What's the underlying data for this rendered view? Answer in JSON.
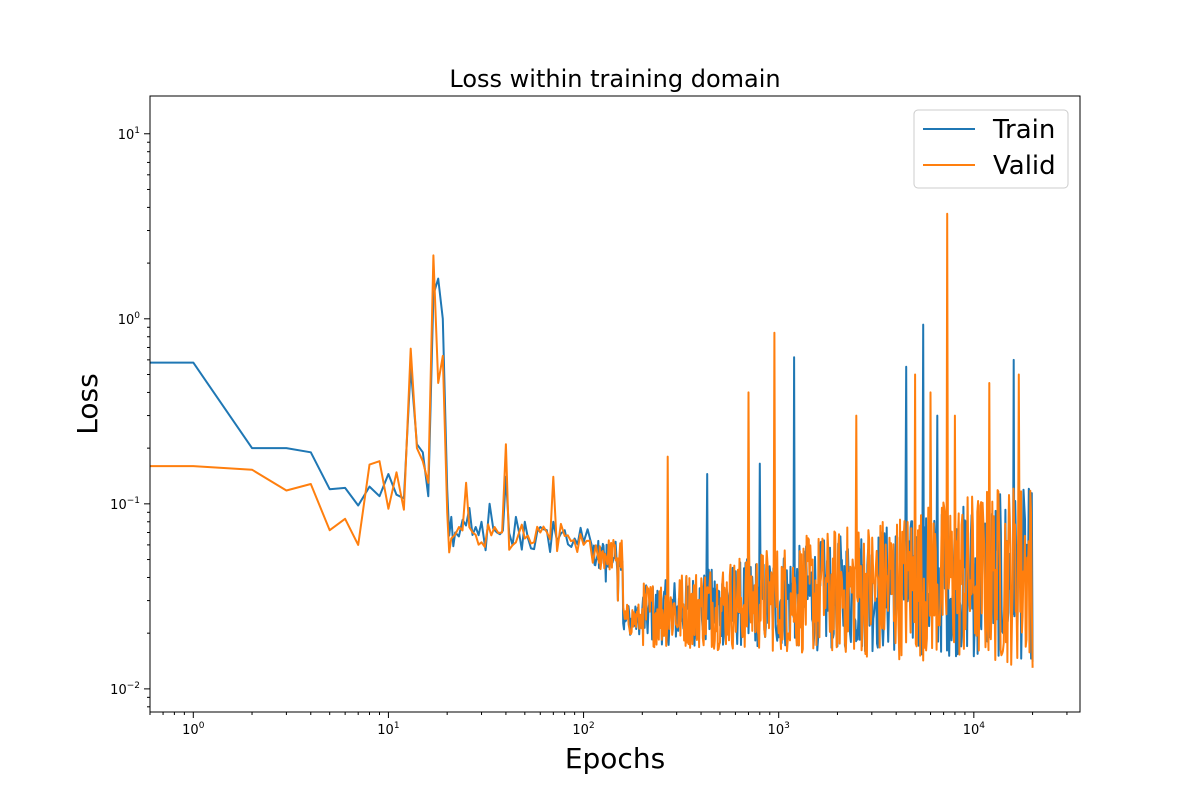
{
  "chart_data": {
    "type": "line",
    "title": "Loss within training domain",
    "xlabel": "Epochs",
    "ylabel": "Loss",
    "xscale": "log",
    "yscale": "log",
    "xlim": [
      0.6,
      35000
    ],
    "ylim": [
      0.0075,
      16
    ],
    "xticks": [
      {
        "value": 1,
        "base": "10",
        "exp": "0"
      },
      {
        "value": 10,
        "base": "10",
        "exp": "1"
      },
      {
        "value": 100,
        "base": "10",
        "exp": "2"
      },
      {
        "value": 1000,
        "base": "10",
        "exp": "3"
      },
      {
        "value": 10000,
        "base": "10",
        "exp": "4"
      }
    ],
    "yticks": [
      {
        "value": 0.01,
        "base": "10",
        "exp": "−2"
      },
      {
        "value": 0.1,
        "base": "10",
        "exp": "−1"
      },
      {
        "value": 1,
        "base": "10",
        "exp": "0"
      },
      {
        "value": 10,
        "base": "10",
        "exp": "1"
      }
    ],
    "grid": false,
    "legend_position": "top-right",
    "series": [
      {
        "name": "Train",
        "color": "#1f77b4",
        "points": [
          [
            0.6,
            0.58
          ],
          [
            1,
            0.58
          ],
          [
            2,
            0.2
          ],
          [
            3,
            0.2
          ],
          [
            4,
            0.19
          ],
          [
            5,
            0.12
          ],
          [
            6,
            0.122
          ],
          [
            7,
            0.098
          ],
          [
            8,
            0.124
          ],
          [
            9,
            0.11
          ],
          [
            10,
            0.145
          ],
          [
            11,
            0.112
          ],
          [
            12,
            0.107
          ],
          [
            13,
            0.55
          ],
          [
            14,
            0.21
          ],
          [
            15,
            0.19
          ],
          [
            16,
            0.11
          ],
          [
            17,
            1.35
          ],
          [
            18,
            1.65
          ],
          [
            19,
            1.0
          ],
          [
            20,
            0.12
          ],
          [
            21,
            0.085
          ],
          [
            22,
            0.07
          ],
          [
            24,
            0.082
          ],
          [
            26,
            0.095
          ],
          [
            28,
            0.075
          ],
          [
            30,
            0.08
          ],
          [
            33,
            0.1
          ],
          [
            36,
            0.07
          ],
          [
            40,
            0.14
          ],
          [
            45,
            0.085
          ],
          [
            50,
            0.08
          ],
          [
            60,
            0.075
          ],
          [
            70,
            0.08
          ],
          [
            80,
            0.072
          ],
          [
            90,
            0.065
          ],
          [
            100,
            0.062
          ],
          [
            110,
            0.06
          ],
          [
            120,
            0.045
          ],
          [
            130,
            0.038
          ],
          [
            150,
            0.03
          ],
          [
            170,
            0.028
          ],
          [
            200,
            0.027
          ],
          [
            250,
            0.025
          ],
          [
            300,
            0.024
          ],
          [
            430,
            0.145
          ],
          [
            500,
            0.022
          ],
          [
            700,
            0.02
          ],
          [
            800,
            0.165
          ],
          [
            1000,
            0.019
          ],
          [
            1200,
            0.62
          ],
          [
            2000,
            0.017
          ],
          [
            4500,
            0.55
          ],
          [
            5500,
            0.93
          ],
          [
            6500,
            0.3
          ],
          [
            10000,
            0.015
          ],
          [
            16000,
            0.6
          ],
          [
            20000,
            0.014
          ]
        ]
      },
      {
        "name": "Valid",
        "color": "#ff7f0e",
        "points": [
          [
            0.6,
            0.16
          ],
          [
            1,
            0.16
          ],
          [
            2,
            0.153
          ],
          [
            3,
            0.118
          ],
          [
            4,
            0.128
          ],
          [
            5,
            0.072
          ],
          [
            6,
            0.083
          ],
          [
            7,
            0.06
          ],
          [
            8,
            0.163
          ],
          [
            9,
            0.17
          ],
          [
            10,
            0.094
          ],
          [
            11,
            0.148
          ],
          [
            12,
            0.093
          ],
          [
            13,
            0.69
          ],
          [
            14,
            0.2
          ],
          [
            15,
            0.17
          ],
          [
            16,
            0.13
          ],
          [
            17,
            2.2
          ],
          [
            18,
            0.45
          ],
          [
            19,
            0.63
          ],
          [
            20,
            0.09
          ],
          [
            21,
            0.065
          ],
          [
            23,
            0.075
          ],
          [
            25,
            0.13
          ],
          [
            27,
            0.07
          ],
          [
            30,
            0.062
          ],
          [
            35,
            0.075
          ],
          [
            40,
            0.21
          ],
          [
            45,
            0.062
          ],
          [
            50,
            0.065
          ],
          [
            60,
            0.07
          ],
          [
            70,
            0.14
          ],
          [
            80,
            0.067
          ],
          [
            100,
            0.06
          ],
          [
            120,
            0.048
          ],
          [
            150,
            0.03
          ],
          [
            200,
            0.027
          ],
          [
            270,
            0.18
          ],
          [
            300,
            0.022
          ],
          [
            700,
            0.4
          ],
          [
            950,
            0.84
          ],
          [
            1000,
            0.02
          ],
          [
            2000,
            0.018
          ],
          [
            2500,
            0.3
          ],
          [
            5000,
            0.5
          ],
          [
            6000,
            0.4
          ],
          [
            7300,
            3.7
          ],
          [
            8000,
            0.3
          ],
          [
            12000,
            0.45
          ],
          [
            17000,
            0.5
          ],
          [
            20000,
            0.013
          ]
        ]
      }
    ]
  }
}
